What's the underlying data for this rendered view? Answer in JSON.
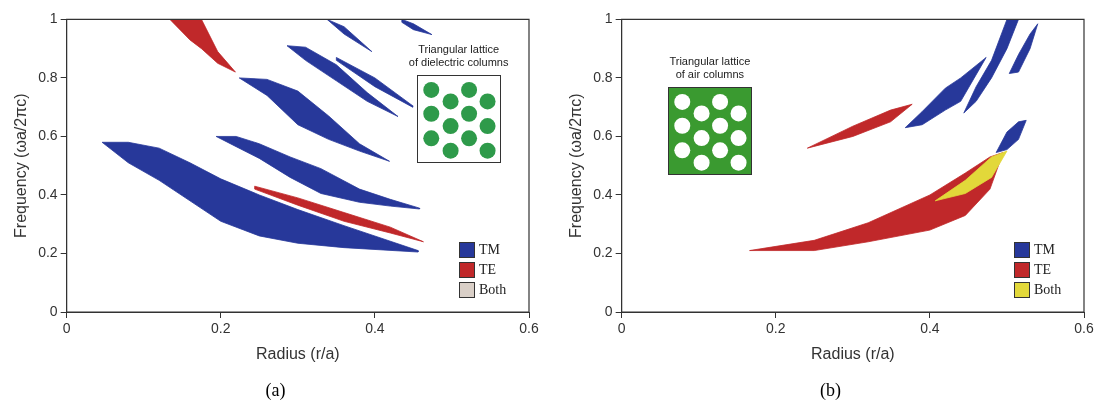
{
  "chart_data": [
    {
      "type": "area",
      "xlabel": "Radius (r/a)",
      "ylabel": "Frequency (ωa/2πc)",
      "xlim": [
        0,
        0.6
      ],
      "xticks": [
        0,
        0.2,
        0.4,
        0.6
      ],
      "ylim": [
        0,
        1
      ],
      "yticks": [
        0,
        0.2,
        0.4,
        0.6,
        0.8,
        1
      ],
      "grid": false,
      "legend": "bottom right",
      "annotations": [
        "Triangular lattice\nof dielectric columns",
        "(a)"
      ],
      "series": [
        {
          "type": "area",
          "name": "TM",
          "color": "#27389a",
          "x": [
            0.046,
            0.08,
            0.12,
            0.16,
            0.2,
            0.25,
            0.3,
            0.36,
            0.456,
            0.456,
            0.36,
            0.3,
            0.25,
            0.2,
            0.16,
            0.12,
            0.08
          ],
          "values": [
            0.58,
            0.58,
            0.56,
            0.51,
            0.455,
            0.4,
            0.35,
            0.295,
            0.21,
            0.205,
            0.22,
            0.235,
            0.26,
            0.31,
            0.38,
            0.45,
            0.51
          ]
        },
        {
          "type": "area",
          "name": "TE",
          "color": "#c0282a",
          "x": [
            0.244,
            0.3,
            0.36,
            0.42,
            0.463,
            0.42,
            0.36,
            0.3,
            0.244
          ],
          "values": [
            0.43,
            0.39,
            0.34,
            0.29,
            0.24,
            0.27,
            0.31,
            0.365,
            0.42
          ]
        },
        {
          "type": "area",
          "name": "Both",
          "color": "#d9cfc7"
        },
        {
          "type": "area",
          "color": "#27389a",
          "x": [
            0.194,
            0.22,
            0.25,
            0.29,
            0.33,
            0.38,
            0.42,
            0.458,
            0.458,
            0.42,
            0.38,
            0.33,
            0.29,
            0.25,
            0.22
          ],
          "values": [
            0.6,
            0.6,
            0.575,
            0.53,
            0.49,
            0.42,
            0.385,
            0.355,
            0.352,
            0.362,
            0.375,
            0.405,
            0.46,
            0.525,
            0.565
          ]
        },
        {
          "type": "area",
          "color": "#27389a",
          "x": [
            0.224,
            0.26,
            0.3,
            0.34,
            0.38,
            0.419,
            0.38,
            0.34,
            0.3,
            0.26
          ],
          "values": [
            0.8,
            0.795,
            0.755,
            0.67,
            0.575,
            0.515,
            0.55,
            0.59,
            0.64,
            0.74
          ]
        },
        {
          "type": "area",
          "color": "#27389a",
          "x": [
            0.286,
            0.31,
            0.35,
            0.39,
            0.43,
            0.39,
            0.35,
            0.31
          ],
          "values": [
            0.91,
            0.905,
            0.845,
            0.75,
            0.668,
            0.72,
            0.79,
            0.86
          ]
        },
        {
          "type": "area",
          "color": "#27389a",
          "x": [
            0.35,
            0.4,
            0.449,
            0.449,
            0.4,
            0.35
          ],
          "values": [
            0.87,
            0.8,
            0.705,
            0.7,
            0.77,
            0.86
          ]
        },
        {
          "type": "area",
          "color": "#27389a",
          "x": [
            0.338,
            0.36,
            0.396,
            0.36
          ],
          "values": [
            1,
            0.975,
            0.89,
            0.95
          ]
        },
        {
          "type": "area",
          "color": "#27389a",
          "x": [
            0.435,
            0.45,
            0.474,
            0.45,
            0.435
          ],
          "values": [
            1,
            0.985,
            0.948,
            0.965,
            0.99
          ]
        },
        {
          "type": "area",
          "color": "#c0282a",
          "x": [
            0.134,
            0.16,
            0.175,
            0.196,
            0.219,
            0.196,
            0.175,
            0.16
          ],
          "values": [
            1,
            1,
            1,
            0.89,
            0.82,
            0.85,
            0.9,
            0.93
          ]
        }
      ]
    },
    {
      "type": "area",
      "xlabel": "Radius (r/a)",
      "ylabel": "Frequency (ωa/2πc)",
      "xlim": [
        0,
        0.6
      ],
      "xticks": [
        0,
        0.2,
        0.4,
        0.6
      ],
      "ylim": [
        0,
        1
      ],
      "yticks": [
        0,
        0.2,
        0.4,
        0.6,
        0.8,
        1
      ],
      "grid": false,
      "legend": "bottom right",
      "annotations": [
        "Triangular lattice\nof air columns",
        "(b)"
      ],
      "series": [
        {
          "type": "area",
          "name": "TM",
          "color": "#27389a",
          "x": [
            0.486,
            0.5,
            0.515,
            0.525,
            0.515,
            0.5
          ],
          "values": [
            0.545,
            0.615,
            0.65,
            0.655,
            0.59,
            0.555
          ]
        },
        {
          "type": "area",
          "name": "TE",
          "color": "#c0282a",
          "x": [
            0.166,
            0.25,
            0.32,
            0.4,
            0.446,
            0.478,
            0.495,
            0.478,
            0.446,
            0.4,
            0.32,
            0.25
          ],
          "values": [
            0.21,
            0.245,
            0.305,
            0.4,
            0.475,
            0.53,
            0.545,
            0.42,
            0.33,
            0.28,
            0.24,
            0.21
          ]
        },
        {
          "type": "area",
          "name": "Both",
          "color": "#e2d83a",
          "x": [
            0.407,
            0.446,
            0.48,
            0.5,
            0.48,
            0.446
          ],
          "values": [
            0.38,
            0.45,
            0.53,
            0.55,
            0.46,
            0.405
          ]
        },
        {
          "type": "area",
          "color": "#c0282a",
          "x": [
            0.241,
            0.3,
            0.349,
            0.377,
            0.349,
            0.3
          ],
          "values": [
            0.56,
            0.635,
            0.69,
            0.71,
            0.65,
            0.6
          ]
        },
        {
          "type": "area",
          "color": "#27389a",
          "x": [
            0.368,
            0.39,
            0.42,
            0.44,
            0.473,
            0.44,
            0.42,
            0.39
          ],
          "values": [
            0.63,
            0.685,
            0.765,
            0.8,
            0.87,
            0.72,
            0.69,
            0.64
          ]
        },
        {
          "type": "area",
          "color": "#27389a",
          "x": [
            0.444,
            0.46,
            0.48,
            0.5,
            0.515,
            0.5,
            0.48,
            0.46
          ],
          "values": [
            0.68,
            0.77,
            0.86,
            1,
            1,
            0.9,
            0.8,
            0.72
          ]
        },
        {
          "type": "area",
          "color": "#27389a",
          "x": [
            0.503,
            0.515,
            0.53,
            0.54,
            0.53,
            0.515
          ],
          "values": [
            0.815,
            0.88,
            0.95,
            0.985,
            0.9,
            0.82
          ]
        }
      ]
    }
  ]
}
